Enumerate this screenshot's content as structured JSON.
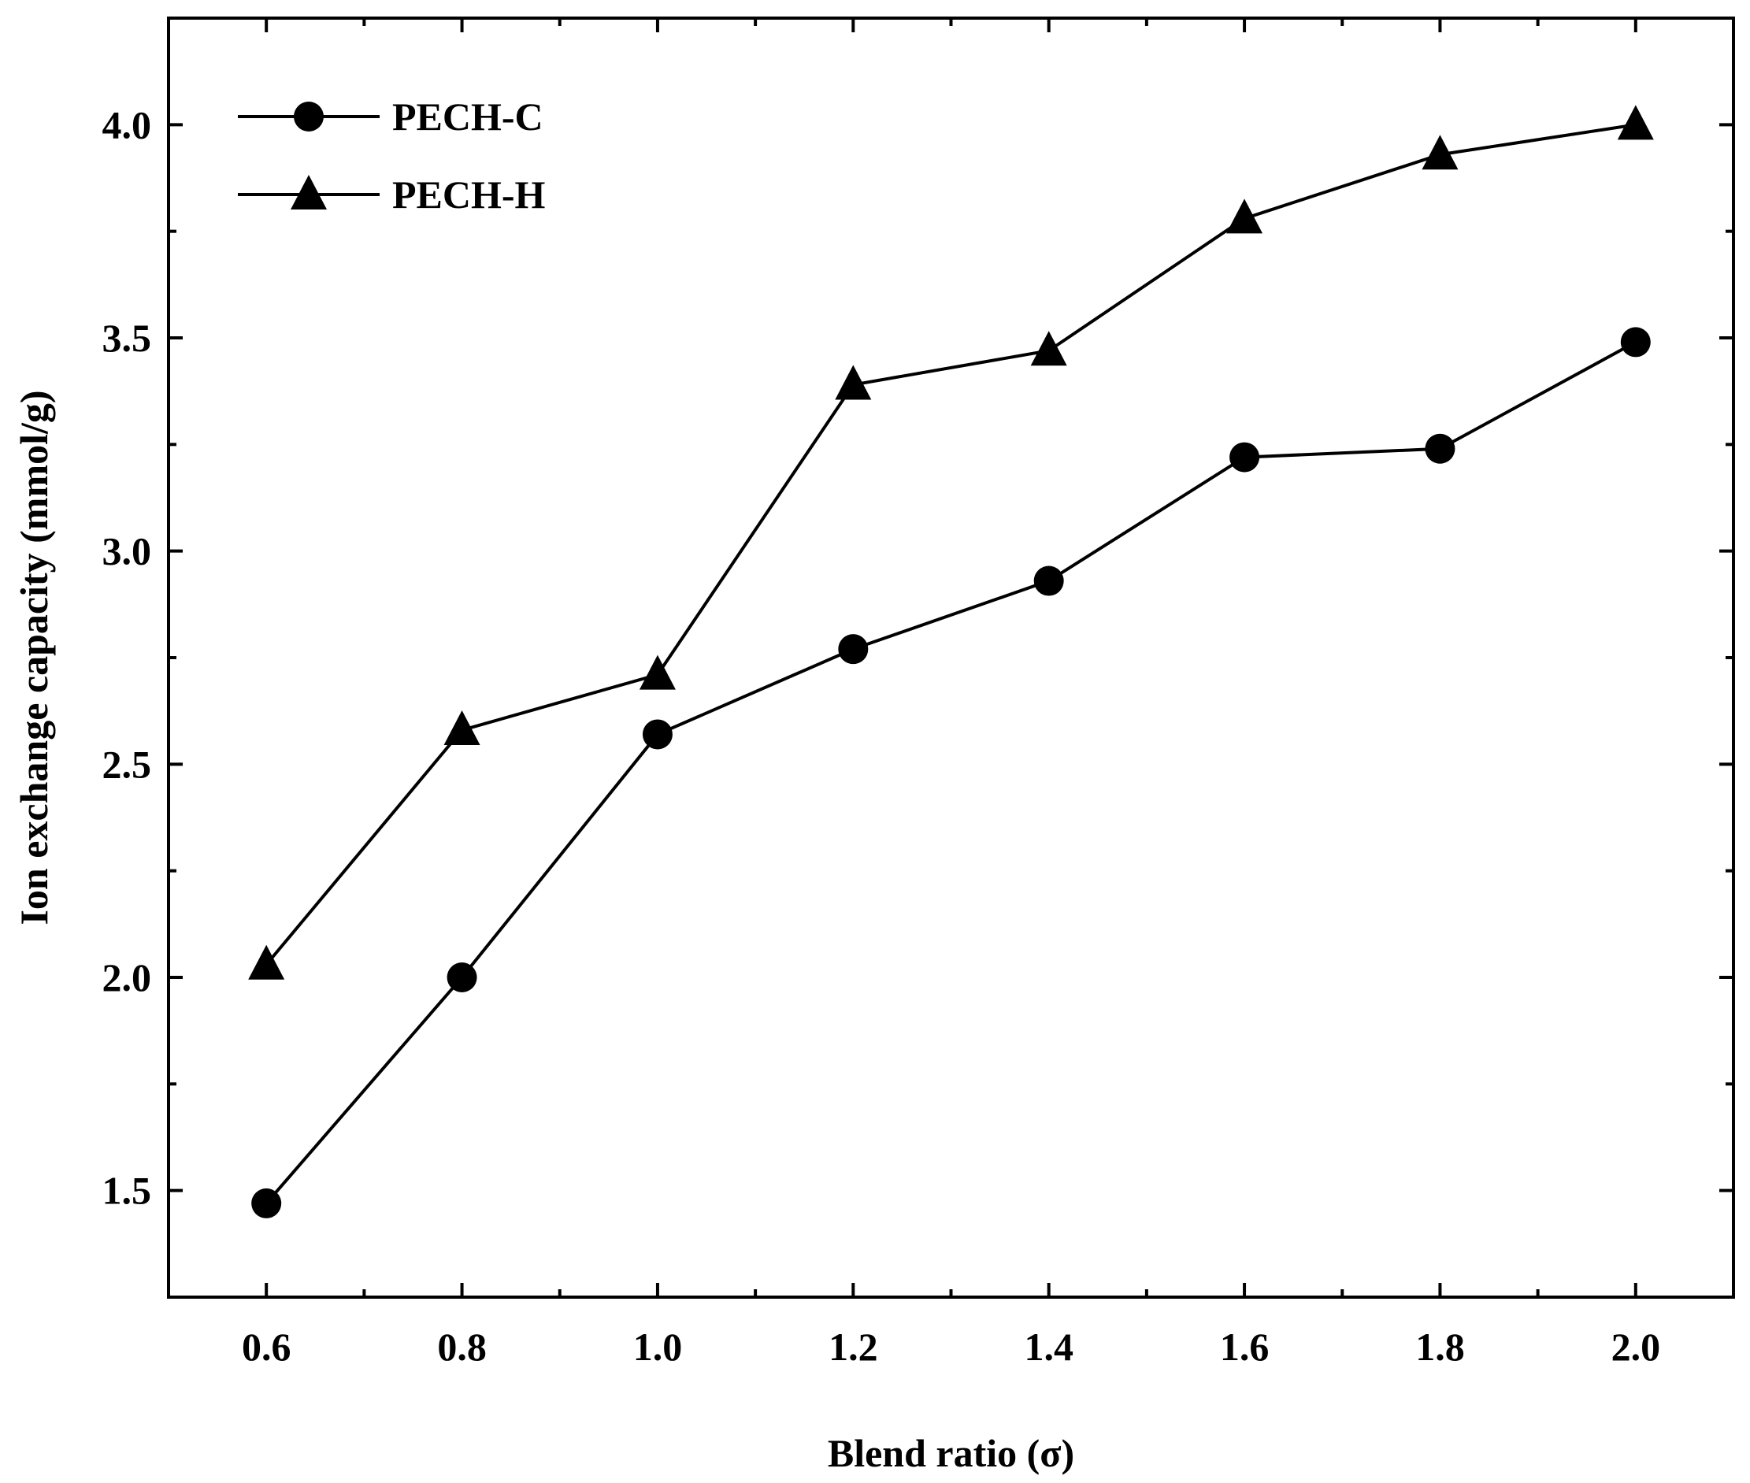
{
  "chart_data": {
    "type": "line",
    "title": "",
    "xlabel": "Blend ratio (σ)",
    "ylabel": "Ion exchange capacity (mmol/g)",
    "xlim": [
      0.5,
      2.1
    ],
    "ylim": [
      1.25,
      4.25
    ],
    "x": [
      0.6,
      0.8,
      1.0,
      1.2,
      1.4,
      1.6,
      1.8,
      2.0
    ],
    "x_ticks": [
      0.6,
      0.8,
      1.0,
      1.2,
      1.4,
      1.6,
      1.8,
      2.0
    ],
    "x_tick_labels": [
      "0.6",
      "0.8",
      "1.0",
      "1.2",
      "1.4",
      "1.6",
      "1.8",
      "2.0"
    ],
    "x_minor_ticks": [
      0.7,
      0.9,
      1.1,
      1.3,
      1.5,
      1.7,
      1.9
    ],
    "y_ticks": [
      1.5,
      2.0,
      2.5,
      3.0,
      3.5,
      4.0
    ],
    "y_tick_labels": [
      "1.5",
      "2.0",
      "2.5",
      "3.0",
      "3.5",
      "4.0"
    ],
    "y_minor_ticks": [
      1.75,
      2.25,
      2.75,
      3.25,
      3.75
    ],
    "grid": false,
    "legend_position": "top-left",
    "series": [
      {
        "name": "PECH-C",
        "marker": "circle",
        "color": "#000000",
        "values": [
          1.47,
          2.0,
          2.57,
          2.77,
          2.93,
          3.22,
          3.24,
          3.49
        ]
      },
      {
        "name": "PECH-H",
        "marker": "triangle",
        "color": "#000000",
        "values": [
          2.03,
          2.58,
          2.71,
          3.39,
          3.47,
          3.78,
          3.93,
          4.0
        ]
      }
    ]
  }
}
